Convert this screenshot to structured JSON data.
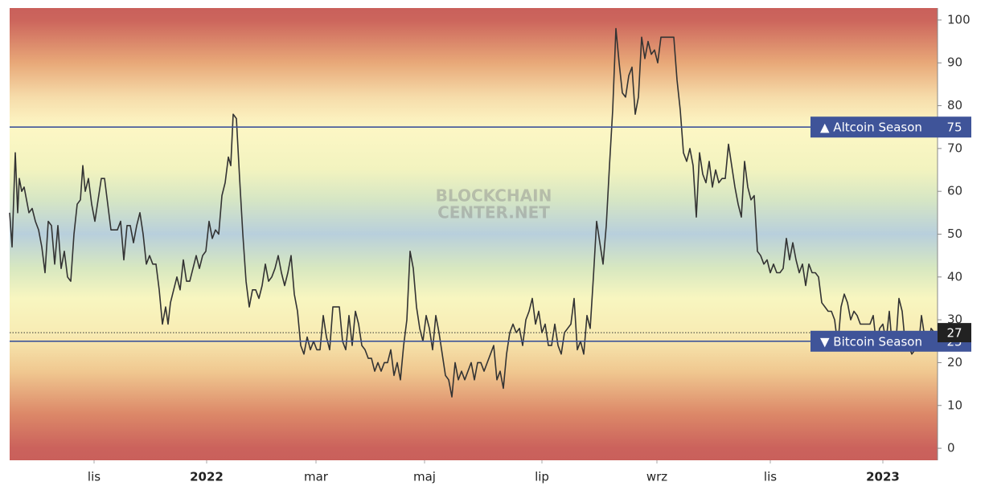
{
  "chart_data": {
    "type": "line",
    "watermark": [
      "BLOCKCHAIN",
      "CENTER.NET"
    ],
    "x": [
      0,
      3,
      7,
      10,
      12,
      15,
      18,
      21,
      24,
      28,
      32,
      36,
      40,
      44,
      48,
      52,
      56,
      60,
      64,
      68,
      72,
      76,
      80,
      84,
      88,
      91,
      94,
      98,
      102,
      106,
      110,
      114,
      118,
      122,
      126,
      130,
      134,
      138,
      142,
      146,
      150,
      154,
      158,
      162,
      166,
      170,
      174,
      178,
      182,
      186,
      190,
      194,
      197,
      200,
      204,
      208,
      212,
      216,
      220,
      224,
      228,
      232,
      236,
      240,
      244,
      248,
      252,
      256,
      260,
      264,
      268,
      272,
      275,
      278,
      282,
      286,
      290,
      294,
      298,
      302,
      306,
      310,
      314,
      318,
      322,
      326,
      330,
      334,
      338,
      342,
      346,
      350,
      354,
      358,
      362,
      366,
      370,
      374,
      378,
      382,
      386,
      390,
      394,
      398,
      402,
      406,
      410,
      414,
      418,
      422,
      426,
      430,
      434,
      438,
      442,
      446,
      450,
      454,
      458,
      462,
      466,
      470,
      474,
      478,
      482,
      486,
      490,
      494,
      498,
      502,
      506,
      510,
      514,
      518,
      522,
      526,
      530,
      534,
      538,
      542,
      546,
      550,
      554,
      558,
      562,
      566,
      570,
      574,
      578,
      582,
      586,
      590,
      594,
      598,
      602,
      606,
      610,
      614,
      618,
      622,
      626,
      630,
      634,
      638,
      642,
      646,
      650,
      654,
      658,
      662,
      666,
      670,
      674,
      678,
      682,
      686,
      690,
      694,
      698,
      702,
      706,
      710,
      714,
      718,
      722,
      726,
      730,
      734,
      738,
      742,
      746,
      750,
      754,
      758,
      762,
      766,
      770,
      774,
      778,
      782,
      786,
      790,
      794,
      798,
      802,
      806,
      810,
      814,
      818,
      822,
      826,
      830,
      834,
      838,
      842,
      846,
      850,
      854,
      858,
      862,
      866,
      870,
      874,
      878,
      882,
      886,
      890,
      894,
      898,
      902,
      906,
      910,
      914,
      918,
      922,
      926,
      930,
      934,
      938,
      942,
      946,
      950,
      954,
      958,
      962,
      966,
      970,
      974,
      978,
      982,
      986,
      990,
      994,
      998,
      1002,
      1006,
      1010,
      1014,
      1018,
      1022,
      1026,
      1030,
      1034,
      1038,
      1042,
      1046,
      1050,
      1054,
      1058,
      1062,
      1066,
      1070,
      1074,
      1078,
      1082,
      1086,
      1090,
      1094,
      1098,
      1102,
      1106,
      1110,
      1114,
      1118,
      1122,
      1126,
      1130,
      1134,
      1138,
      1142,
      1146,
      1150
    ],
    "series": [
      {
        "color": "#333333",
        "values": [
          55,
          47,
          69,
          55,
          63,
          60,
          61,
          58,
          55,
          56,
          53,
          51,
          47,
          41,
          53,
          52,
          43,
          52,
          42,
          46,
          40,
          39,
          50,
          57,
          58,
          66,
          60,
          63,
          57,
          53,
          58,
          63,
          63,
          57,
          51,
          51,
          51,
          53,
          44,
          52,
          52,
          48,
          52,
          55,
          50,
          43,
          45,
          43,
          43,
          37,
          29,
          33,
          29,
          34,
          37,
          40,
          37,
          44,
          39,
          39,
          42,
          45,
          42,
          45,
          46,
          53,
          49,
          51,
          50,
          59,
          62,
          68,
          66,
          78,
          77,
          63,
          50,
          39,
          33,
          37,
          37,
          35,
          38,
          43,
          39,
          40,
          42,
          45,
          41,
          38,
          41,
          45,
          36,
          32,
          24,
          22,
          26,
          23,
          25,
          23,
          23,
          31,
          26,
          23,
          33,
          33,
          33,
          25,
          23,
          31,
          24,
          32,
          29,
          24,
          23,
          21,
          21,
          18,
          20,
          18,
          20,
          20,
          23,
          17,
          20,
          16,
          24,
          30,
          46,
          42,
          33,
          28,
          25,
          31,
          28,
          23,
          31,
          27,
          22,
          17,
          16,
          12,
          20,
          16,
          18,
          16,
          18,
          20,
          16,
          20,
          20,
          18,
          20,
          22,
          24,
          16,
          18,
          14,
          22,
          27,
          29,
          27,
          28,
          24,
          30,
          32,
          35,
          29,
          32,
          27,
          29,
          24,
          24,
          29,
          24,
          22,
          27,
          28,
          29,
          35,
          23,
          25,
          22,
          31,
          28,
          40,
          53,
          48,
          43,
          52,
          66,
          79,
          98,
          90,
          83,
          82,
          87,
          89,
          78,
          82,
          96,
          91,
          95,
          92,
          93,
          90,
          96,
          96,
          96,
          96,
          96,
          86,
          79,
          69,
          67,
          70,
          66,
          54,
          69,
          64,
          62,
          67,
          61,
          65,
          62,
          63,
          63,
          71,
          66,
          61,
          57,
          54,
          67,
          61,
          58,
          59,
          46,
          45,
          43,
          44,
          41,
          43,
          41,
          41,
          42,
          49,
          44,
          48,
          44,
          41,
          43,
          38,
          43,
          41,
          41,
          40,
          34,
          33,
          32,
          32,
          30,
          24,
          33,
          36,
          34,
          30,
          32,
          31,
          29,
          29,
          29,
          29,
          31,
          24,
          28,
          29,
          25,
          32,
          23,
          24,
          35,
          32,
          24,
          24,
          22,
          23,
          23,
          31,
          26,
          23,
          28,
          27
        ]
      }
    ],
    "xlim": [
      0,
      1154
    ],
    "xticks": [
      {
        "value": 105,
        "label": "lis"
      },
      {
        "value": 245,
        "label": "2022"
      },
      {
        "value": 381,
        "label": "mar"
      },
      {
        "value": 516,
        "label": "maj"
      },
      {
        "value": 662,
        "label": "lip"
      },
      {
        "value": 805,
        "label": "wrz"
      },
      {
        "value": 946,
        "label": "lis"
      },
      {
        "value": 1086,
        "label": "2023"
      }
    ],
    "ylim": [
      -2.8,
      102.8
    ],
    "yticks": [
      0,
      10,
      20,
      30,
      40,
      50,
      60,
      70,
      80,
      90,
      100
    ],
    "reference_lines": [
      {
        "value": 75,
        "label": "▲ Altcoin Season",
        "color": "#3f5499"
      },
      {
        "value": 25,
        "label": "▼ Bitcoin Season",
        "color": "#3f5499"
      }
    ],
    "last_value": 27
  }
}
